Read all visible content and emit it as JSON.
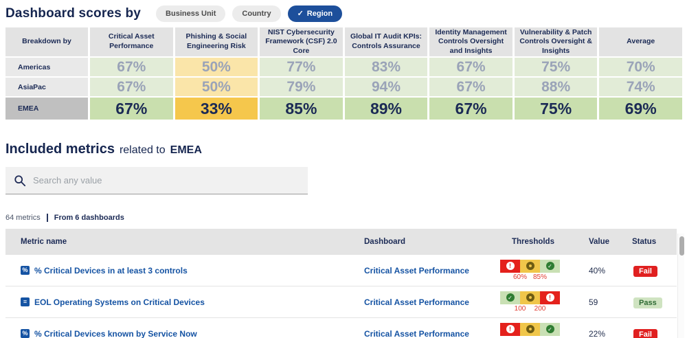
{
  "page": {
    "title": "Dashboard scores by"
  },
  "toggles": [
    {
      "label": "Business Unit",
      "active": false
    },
    {
      "label": "Country",
      "active": false
    },
    {
      "label": "Region",
      "active": true
    }
  ],
  "scores_table": {
    "corner": "Breakdown by",
    "columns": [
      "Critical Asset Performance",
      "Phishing & Social Engineering Risk",
      "NIST Cybersecurity Framework (CSF) 2.0 Core",
      "Global IT Audit KPIs: Controls Assurance",
      "Identity Management Controls Oversight and Insights",
      "Vulnerability & Patch Controls Oversight & Insights",
      "Average"
    ],
    "rows": [
      {
        "label": "Americas",
        "selected": false,
        "cells": [
          {
            "v": "67%",
            "tone": "green"
          },
          {
            "v": "50%",
            "tone": "yellow"
          },
          {
            "v": "77%",
            "tone": "green"
          },
          {
            "v": "83%",
            "tone": "green"
          },
          {
            "v": "67%",
            "tone": "green"
          },
          {
            "v": "75%",
            "tone": "green"
          },
          {
            "v": "70%",
            "tone": "green"
          }
        ]
      },
      {
        "label": "AsiaPac",
        "selected": false,
        "cells": [
          {
            "v": "67%",
            "tone": "green"
          },
          {
            "v": "50%",
            "tone": "yellow"
          },
          {
            "v": "79%",
            "tone": "green"
          },
          {
            "v": "94%",
            "tone": "green"
          },
          {
            "v": "67%",
            "tone": "green"
          },
          {
            "v": "88%",
            "tone": "green"
          },
          {
            "v": "74%",
            "tone": "green"
          }
        ]
      },
      {
        "label": "EMEA",
        "selected": true,
        "cells": [
          {
            "v": "67%",
            "tone": "green"
          },
          {
            "v": "33%",
            "tone": "yellow"
          },
          {
            "v": "85%",
            "tone": "green"
          },
          {
            "v": "89%",
            "tone": "green"
          },
          {
            "v": "67%",
            "tone": "green"
          },
          {
            "v": "75%",
            "tone": "green"
          },
          {
            "v": "69%",
            "tone": "green"
          }
        ]
      }
    ]
  },
  "included": {
    "title": "Included metrics",
    "subtitle": "related to",
    "entity": "EMEA",
    "search_placeholder": "Search any value",
    "metric_count": "64 metrics",
    "source": "From 6 dashboards"
  },
  "metrics_table": {
    "headers": {
      "name": "Metric name",
      "dashboard": "Dashboard",
      "thresholds": "Thresholds",
      "value": "Value",
      "status": "Status"
    },
    "rows": [
      {
        "icon": "percent-metric-icon",
        "glyph": "%",
        "name": "% Critical Devices in at least 3 controls",
        "dashboard": "Critical Asset Performance",
        "segments": [
          "fail",
          "warn",
          "pass"
        ],
        "labels": [
          "60%",
          "85%"
        ],
        "value": "40%",
        "status": "Fail",
        "status_tone": "fail"
      },
      {
        "icon": "number-metric-icon",
        "glyph": "≡",
        "name": "EOL Operating Systems on Critical Devices",
        "dashboard": "Critical Asset Performance",
        "segments": [
          "pass",
          "warn",
          "fail"
        ],
        "labels": [
          "100",
          "200"
        ],
        "value": "59",
        "status": "Pass",
        "status_tone": "pass"
      },
      {
        "icon": "percent-metric-icon",
        "glyph": "%",
        "name": "% Critical Devices known by Service Now",
        "dashboard": "Critical Asset Performance",
        "segments": [
          "fail",
          "warn",
          "pass"
        ],
        "labels": [],
        "value": "22%",
        "status": "Fail",
        "status_tone": "fail"
      }
    ]
  },
  "colors": {
    "navy": "#15254f",
    "active_pill": "#1d4f9b",
    "link_blue": "#1553a3",
    "green_muted": "#e2ecd7",
    "yellow_muted": "#fae5a9",
    "green_selected": "#c9dfae",
    "yellow_selected": "#f5c74c",
    "fail_red": "#e02020",
    "pass_green": "#cfe3c1"
  }
}
